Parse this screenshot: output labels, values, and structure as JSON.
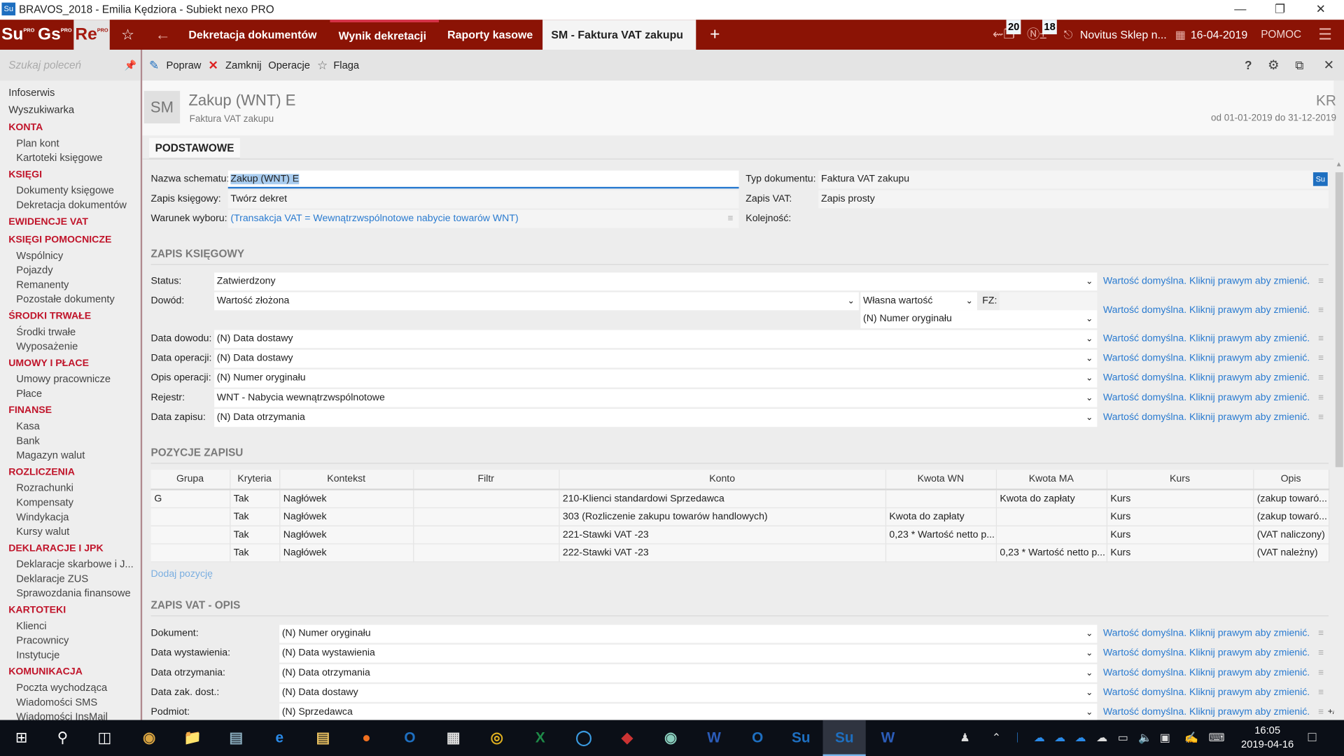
{
  "window": {
    "title": "BRAVOS_2018 - Emilia Kędziora - Subiekt nexo PRO",
    "app_icon": "Su"
  },
  "appbar": {
    "apps": [
      {
        "label": "Su",
        "sup": "PRO"
      },
      {
        "label": "Gs",
        "sup": "PRO"
      },
      {
        "label": "Re",
        "sup": "PRO"
      }
    ],
    "tabs": [
      "Dekretacja dokumentów",
      "Wynik dekretacji",
      "Raporty kasowe",
      "SM - Faktura VAT zakupu"
    ],
    "badge_docs": "20",
    "badge_cash": "18",
    "printer": "Novitus Sklep n...",
    "date": "16-04-2019",
    "help": "POMOC",
    "color": "#8b1305"
  },
  "sidebar": {
    "search_placeholder": "Szukaj poleceń",
    "items": [
      {
        "t": "top",
        "label": "Infoserwis"
      },
      {
        "t": "top",
        "label": "Wyszukiwarka"
      },
      {
        "t": "sec",
        "label": "KONTA"
      },
      {
        "t": "item",
        "label": "Plan kont"
      },
      {
        "t": "item",
        "label": "Kartoteki księgowe"
      },
      {
        "t": "sec",
        "label": "KSIĘGI"
      },
      {
        "t": "item",
        "label": "Dokumenty księgowe"
      },
      {
        "t": "item",
        "label": "Dekretacja dokumentów"
      },
      {
        "t": "sec",
        "label": "EWIDENCJE VAT"
      },
      {
        "t": "sec",
        "label": "KSIĘGI POMOCNICZE"
      },
      {
        "t": "item",
        "label": "Wspólnicy"
      },
      {
        "t": "item",
        "label": "Pojazdy"
      },
      {
        "t": "item",
        "label": "Remanenty"
      },
      {
        "t": "item",
        "label": "Pozostałe dokumenty"
      },
      {
        "t": "sec",
        "label": "ŚRODKI TRWAŁE"
      },
      {
        "t": "item",
        "label": "Środki trwałe"
      },
      {
        "t": "item",
        "label": "Wyposażenie"
      },
      {
        "t": "sec",
        "label": "UMOWY I PŁACE"
      },
      {
        "t": "item",
        "label": "Umowy pracownicze"
      },
      {
        "t": "item",
        "label": "Płace"
      },
      {
        "t": "sec",
        "label": "FINANSE"
      },
      {
        "t": "item",
        "label": "Kasa"
      },
      {
        "t": "item",
        "label": "Bank"
      },
      {
        "t": "item",
        "label": "Magazyn walut"
      },
      {
        "t": "sec",
        "label": "ROZLICZENIA"
      },
      {
        "t": "item",
        "label": "Rozrachunki"
      },
      {
        "t": "item",
        "label": "Kompensaty"
      },
      {
        "t": "item",
        "label": "Windykacja"
      },
      {
        "t": "item",
        "label": "Kursy walut"
      },
      {
        "t": "sec",
        "label": "DEKLARACJE I JPK"
      },
      {
        "t": "item",
        "label": "Deklaracje skarbowe i J..."
      },
      {
        "t": "item",
        "label": "Deklaracje ZUS"
      },
      {
        "t": "item",
        "label": "Sprawozdania finansowe"
      },
      {
        "t": "sec",
        "label": "KARTOTEKI"
      },
      {
        "t": "item",
        "label": "Klienci"
      },
      {
        "t": "item",
        "label": "Pracownicy"
      },
      {
        "t": "item",
        "label": "Instytucje"
      },
      {
        "t": "sec",
        "label": "KOMUNIKACJA"
      },
      {
        "t": "item",
        "label": "Poczta wychodząca"
      },
      {
        "t": "item",
        "label": "Wiadomości SMS"
      },
      {
        "t": "item",
        "label": "Wiadomości InsMail"
      }
    ]
  },
  "toolbar": {
    "edit": "Popraw",
    "close": "Zamknij",
    "operations": "Operacje",
    "flag": "Flaga"
  },
  "header": {
    "badge": "SM",
    "title": "Zakup (WNT) E",
    "subtitle": "Faktura VAT zakupu",
    "company": "KR",
    "period": "od 01-01-2019 do 31-12-2019"
  },
  "tab": "PODSTAWOWE",
  "basic": {
    "scheme_label": "Nazwa schematu:",
    "scheme_value": "Zakup (WNT) E",
    "entry_label": "Zapis księgowy:",
    "entry_value": "Twórz dekret",
    "condition_label": "Warunek wyboru:",
    "condition_value": "(Transakcja VAT = Wewnątrzwspólnotowe nabycie towarów WNT)",
    "doctype_label": "Typ dokumentu:",
    "doctype_value": "Faktura VAT zakupu",
    "doctype_badge": "Su",
    "vat_label": "Zapis VAT:",
    "vat_value": "Zapis prosty",
    "order_label": "Kolejność:"
  },
  "ledger": {
    "title": "ZAPIS KSIĘGOWY",
    "default_hint": "Wartość domyślna. Kliknij prawym aby zmienić.",
    "status_label": "Status:",
    "status_value": "Zatwierdzony",
    "proof_label": "Dowód:",
    "proof_value": "Wartość złożona",
    "proof_mode": "Własna wartość",
    "fz_label": "FZ:",
    "proof_number": "(N) Numer oryginału",
    "rows": [
      {
        "label": "Data dowodu:",
        "value": "(N) Data dostawy"
      },
      {
        "label": "Data operacji:",
        "value": "(N) Data dostawy"
      },
      {
        "label": "Opis operacji:",
        "value": "(N) Numer oryginału"
      },
      {
        "label": "Rejestr:",
        "value": "WNT - Nabycia wewnątrzwspólnotowe"
      },
      {
        "label": "Data zapisu:",
        "value": "(N) Data otrzymania"
      }
    ]
  },
  "positions": {
    "title": "POZYCJE ZAPISU",
    "add_link": "Dodaj pozycję",
    "columns": [
      "Grupa",
      "Kryteria",
      "Kontekst",
      "Filtr",
      "Konto",
      "Kwota WN",
      "Kwota MA",
      "Kurs",
      "Opis"
    ],
    "rows": [
      [
        "G",
        "Tak",
        "Nagłówek",
        "",
        "210-Klienci standardowi Sprzedawca",
        "",
        "Kwota do zapłaty",
        "Kurs",
        "(zakup towaró..."
      ],
      [
        "",
        "Tak",
        "Nagłówek",
        "",
        "303 (Rozliczenie zakupu towarów handlowych)",
        "Kwota do zapłaty",
        "",
        "Kurs",
        "(zakup towaró..."
      ],
      [
        "",
        "Tak",
        "Nagłówek",
        "",
        "221-Stawki VAT -23",
        "0,23 * Wartość netto p...",
        "",
        "Kurs",
        "(VAT naliczony)"
      ],
      [
        "",
        "Tak",
        "Nagłówek",
        "",
        "222-Stawki VAT -23",
        "",
        "0,23 * Wartość netto p...",
        "Kurs",
        "(VAT należny)"
      ]
    ]
  },
  "vat": {
    "title": "ZAPIS VAT - OPIS",
    "expand": "+/-",
    "rows": [
      {
        "label": "Dokument:",
        "value": "(N) Numer oryginału"
      },
      {
        "label": "Data wystawienia:",
        "value": "(N) Data wystawienia"
      },
      {
        "label": "Data otrzymania:",
        "value": "(N) Data otrzymania"
      },
      {
        "label": "Data zak. dost.:",
        "value": "(N) Data dostawy"
      },
      {
        "label": "Podmiot:",
        "value": "(N) Sprzedawca"
      }
    ]
  },
  "taskbar": {
    "apps": [
      "hp-icon",
      "file-explorer-icon",
      "scanner-icon",
      "edge-icon",
      "folder-icon",
      "firefox-icon",
      "outlook-icon",
      "calculator-icon",
      "chrome-icon",
      "excel-icon",
      "teamviewer-icon",
      "anydesk-icon",
      "globe-icon",
      "word-icon",
      "outlook-icon",
      "subiekt-icon",
      "subiekt-icon",
      "word-icon"
    ],
    "time": "16:05",
    "date": "2019-04-16"
  }
}
